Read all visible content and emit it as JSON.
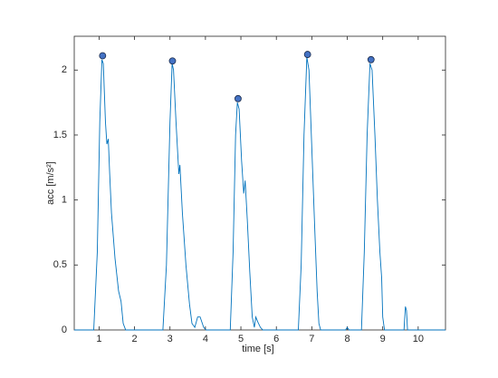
{
  "chart_data": {
    "type": "line",
    "xlabel": "time [s]",
    "ylabel": "acc [m/s²]",
    "xlim": [
      0.3,
      10.77
    ],
    "ylim": [
      0,
      2.26
    ],
    "xticks": [
      1,
      2,
      3,
      4,
      5,
      6,
      7,
      8,
      9,
      10
    ],
    "yticks": [
      0,
      0.5,
      1,
      1.5,
      2
    ],
    "series": [
      {
        "color": "#0072bd",
        "marker": "none",
        "x": [
          0.3,
          0.85,
          0.95,
          1.02,
          1.08,
          1.12,
          1.18,
          1.22,
          1.26,
          1.3,
          1.35,
          1.45,
          1.55,
          1.62,
          1.68,
          1.75,
          2.8,
          2.9,
          3.0,
          3.06,
          3.1,
          3.17,
          3.25,
          3.28,
          3.35,
          3.45,
          3.55,
          3.62,
          3.7,
          3.78,
          3.85,
          3.95,
          4.02,
          4.7,
          4.78,
          4.85,
          4.9,
          4.95,
          5.02,
          5.08,
          5.12,
          5.18,
          5.25,
          5.32,
          5.38,
          5.42,
          5.48,
          5.55,
          5.62,
          6.62,
          6.7,
          6.78,
          6.86,
          6.92,
          7.0,
          7.08,
          7.15,
          7.2,
          7.25,
          7.95,
          8.0,
          8.05,
          8.4,
          8.48,
          8.56,
          8.64,
          8.7,
          8.78,
          8.85,
          8.92,
          8.97,
          9.0,
          9.05,
          9.6,
          9.64,
          9.67,
          9.7,
          10.77
        ],
        "values": [
          0,
          0,
          0.6,
          1.6,
          2.08,
          2.05,
          1.6,
          1.43,
          1.47,
          1.2,
          0.9,
          0.55,
          0.3,
          0.22,
          0.05,
          0,
          0,
          0.5,
          1.6,
          2.05,
          2.0,
          1.6,
          1.2,
          1.27,
          0.9,
          0.5,
          0.2,
          0.05,
          0.02,
          0.1,
          0.1,
          0.02,
          0,
          0,
          0.6,
          1.5,
          1.75,
          1.7,
          1.3,
          1.05,
          1.15,
          0.85,
          0.45,
          0.1,
          0.02,
          0.1,
          0.06,
          0.02,
          0,
          0,
          0.5,
          1.5,
          2.1,
          2.0,
          1.4,
          0.8,
          0.3,
          0.05,
          0,
          0,
          0.02,
          0,
          0,
          0.6,
          1.5,
          2.05,
          2.0,
          1.5,
          1.0,
          0.6,
          0.4,
          0.1,
          0,
          0,
          0.18,
          0.15,
          0,
          0
        ]
      },
      {
        "color": "#4472c4",
        "marker": "circle",
        "x": [
          1.1,
          3.07,
          4.92,
          6.88,
          8.67
        ],
        "values": [
          2.11,
          2.07,
          1.78,
          2.12,
          2.08
        ]
      }
    ]
  }
}
